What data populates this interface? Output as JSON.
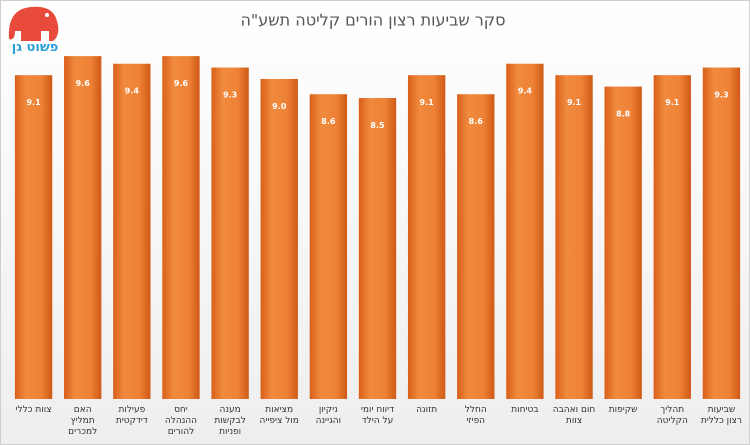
{
  "logo": {
    "text": "פשוט גן"
  },
  "chart_data": {
    "type": "bar",
    "title": "סקר שביעות רצון הורים קליטה תשע\"ה",
    "categories": [
      "צוות כללי",
      "האם תמליץ למכרים",
      "פעילות דידקטית",
      "יחס ההנהלה להורים",
      "מענה לבקשות ופניות",
      "מציאות מול ציפייה",
      "ניקיון והגיינה",
      "דיווח יומי על הילד",
      "תזונה",
      "החלל הפיזי",
      "בטיחות",
      "חום ואהבה צוות",
      "שקיפות",
      "תהליך הקליטה",
      "שביעות רצון כללית"
    ],
    "values": [
      9.1,
      9.6,
      9.4,
      9.6,
      9.3,
      9.0,
      8.6,
      8.5,
      9.1,
      8.6,
      9.4,
      9.1,
      8.8,
      9.1,
      9.3
    ],
    "value_labels": [
      "9.1",
      "9.6",
      "9.4",
      "9.6",
      "9.3",
      "9.0",
      "8.6",
      "8.5",
      "9.1",
      "8.6",
      "9.4",
      "9.1",
      "8.8",
      "9.1",
      "9.3"
    ],
    "color": "#ed7d31",
    "ylim": [
      0.6,
      9.8
    ]
  }
}
